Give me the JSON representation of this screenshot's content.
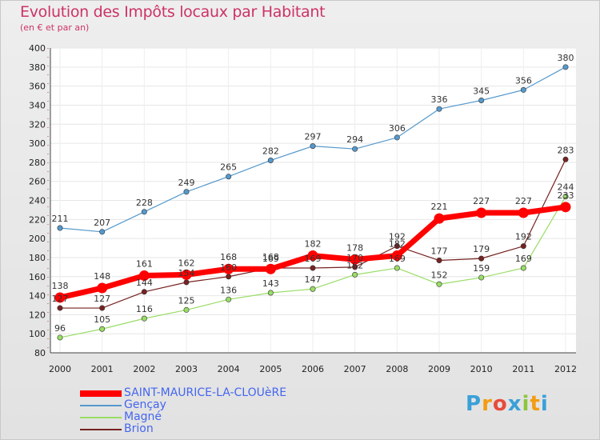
{
  "chart_data": {
    "type": "line",
    "title": "Evolution des Impôts locaux par Habitant",
    "subtitle": "(en € et par an)",
    "xlabel": "",
    "ylabel": "",
    "categories": [
      "2000",
      "2001",
      "2002",
      "2003",
      "2004",
      "2005",
      "2006",
      "2007",
      "2008",
      "2009",
      "2010",
      "2011",
      "2012"
    ],
    "ylim": [
      80,
      400
    ],
    "yticks": [
      80,
      100,
      120,
      140,
      160,
      180,
      200,
      220,
      240,
      260,
      280,
      300,
      320,
      340,
      360,
      380,
      400
    ],
    "series": [
      {
        "name": "SAINT-MAURICE-LA-CLOUèRE",
        "color": "#ff0000",
        "values": [
          138,
          148,
          161,
          162,
          168,
          168,
          182,
          178,
          182,
          221,
          227,
          227,
          233
        ]
      },
      {
        "name": "Gençay",
        "color": "#5599cc",
        "values": [
          211,
          207,
          228,
          249,
          265,
          282,
          297,
          294,
          306,
          336,
          345,
          356,
          380
        ]
      },
      {
        "name": "Magné",
        "color": "#99dd66",
        "values": [
          96,
          105,
          116,
          125,
          136,
          143,
          147,
          162,
          169,
          152,
          159,
          169,
          244
        ]
      },
      {
        "name": "Brion",
        "color": "#772222",
        "values": [
          127,
          127,
          144,
          154,
          160,
          169,
          169,
          170,
          192,
          177,
          179,
          192,
          283
        ]
      }
    ],
    "legend_position": "bottom-left"
  },
  "logo": {
    "text": "Proxiti"
  }
}
